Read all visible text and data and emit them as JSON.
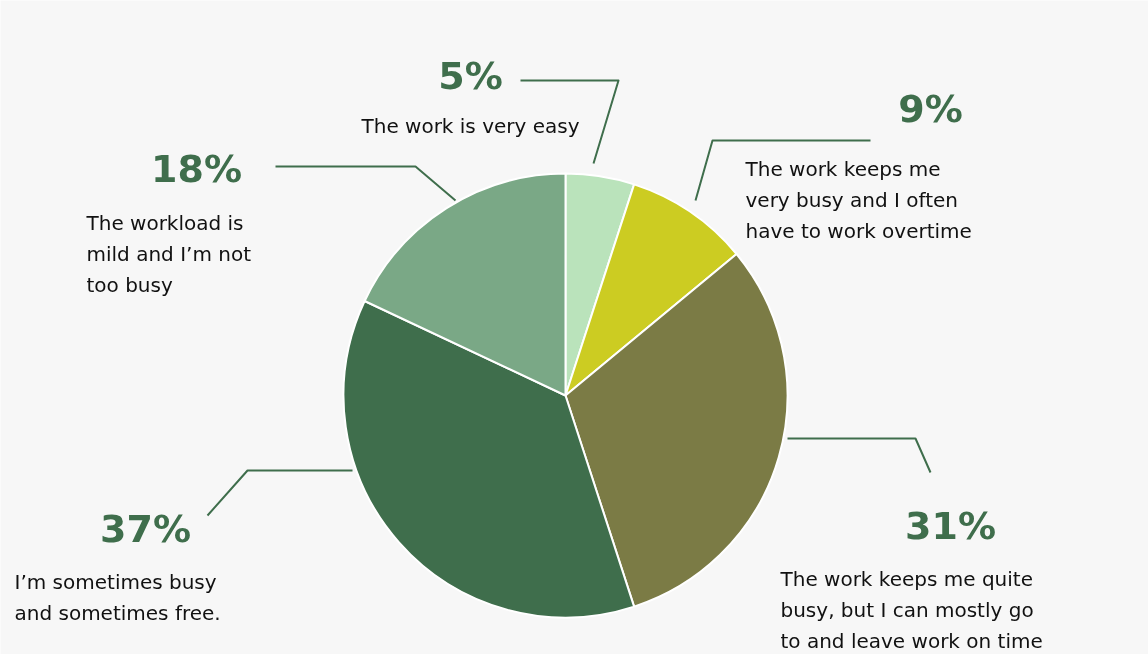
{
  "chart_data": {
    "type": "pie",
    "categories": [
      "The work is very easy",
      "The work keeps me very busy and I often have to work overtime",
      "The work keeps me quite busy, but I can mostly go to and leave work on time",
      "I’m sometimes busy and sometimes free.",
      "The workload is mild and I’m not too busy"
    ],
    "values": [
      5,
      9,
      31,
      37,
      18
    ],
    "value_labels": [
      "5%",
      "9%",
      "31%",
      "37%",
      "18%"
    ],
    "colors": [
      "#bae3bb",
      "#cccc22",
      "#7b7b45",
      "#3f6e4c",
      "#7aa886"
    ]
  }
}
